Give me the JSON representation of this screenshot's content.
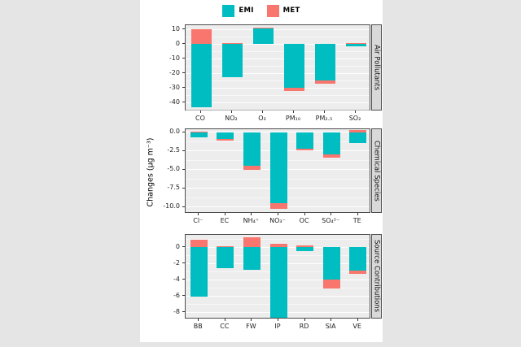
{
  "legend": {
    "items": [
      {
        "name": "EMI",
        "label": "EMI"
      },
      {
        "name": "MET",
        "label": "MET"
      }
    ]
  },
  "chart_data": {
    "type": "bar",
    "stacked": true,
    "orientation": "vertical",
    "title": "",
    "ylabel": "Changes (μg m⁻³)",
    "legend_position": "top",
    "grid": true,
    "series_names": [
      "EMI",
      "MET"
    ],
    "colors": {
      "EMI": "#00BDC1",
      "MET": "#F8766D",
      "panel_bg": "#EDEDED",
      "strip_bg": "#D9D9D9",
      "figure_bg": "#FFFFFF",
      "outer_bg": "#E5E5E5"
    },
    "facets": [
      {
        "strip": "Air Pollutants",
        "categories": [
          "CO",
          "NO₂",
          "O₃",
          "PM₁₀",
          "PM₂.₅",
          "SO₂"
        ],
        "series": [
          {
            "name": "EMI",
            "values": [
              -43,
              -22.5,
              10.5,
              -30,
              -25,
              -1.8
            ]
          },
          {
            "name": "MET",
            "values": [
              10,
              0.6,
              0.5,
              -2.3,
              -2.2,
              0.5
            ]
          }
        ],
        "ylim": [
          -46,
          12.8
        ],
        "ticks": [
          10,
          0,
          -10,
          -20,
          -30,
          -40
        ],
        "tick_labels": [
          "10",
          "0",
          "-10",
          "-20",
          "-30",
          "-40"
        ]
      },
      {
        "strip": "Chemical Species",
        "categories": [
          "Cl⁻",
          "EC",
          "NH₄⁺",
          "NO₃⁻",
          "OC",
          "SO₄²⁻",
          "TE"
        ],
        "series": [
          {
            "name": "EMI",
            "values": [
              -0.7,
              -0.9,
              -4.5,
              -9.5,
              -2.2,
              -3.0,
              -1.5
            ]
          },
          {
            "name": "MET",
            "values": [
              0.1,
              -0.25,
              -0.55,
              -0.8,
              -0.25,
              -0.4,
              0.25
            ]
          }
        ],
        "ylim": [
          -10.9,
          0.4
        ],
        "ticks": [
          0,
          -2.5,
          -5,
          -7.5,
          -10
        ],
        "tick_labels": [
          "0.0",
          "-2.5",
          "-5.0",
          "-7.5",
          "-10.0"
        ]
      },
      {
        "strip": "Source Contributions",
        "categories": [
          "BB",
          "CC",
          "FW",
          "IP",
          "RD",
          "SIA",
          "VE"
        ],
        "series": [
          {
            "name": "EMI",
            "values": [
              -6.1,
              -2.6,
              -2.8,
              -8.7,
              -0.5,
              -4.0,
              -2.9
            ]
          },
          {
            "name": "MET",
            "values": [
              0.9,
              0.15,
              1.2,
              0.4,
              0.25,
              -1.1,
              -0.35
            ]
          }
        ],
        "ylim": [
          -8.9,
          1.5
        ],
        "ticks": [
          0,
          -2,
          -4,
          -6,
          -8
        ],
        "tick_labels": [
          "0",
          "-2",
          "-4",
          "-6",
          "-8"
        ]
      }
    ]
  }
}
